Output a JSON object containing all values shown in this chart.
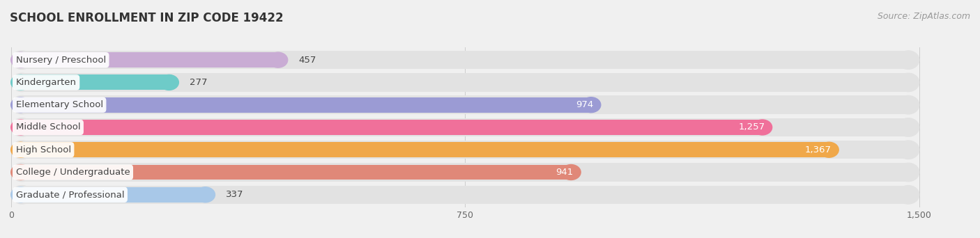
{
  "title": "SCHOOL ENROLLMENT IN ZIP CODE 19422",
  "source": "Source: ZipAtlas.com",
  "categories": [
    "Nursery / Preschool",
    "Kindergarten",
    "Elementary School",
    "Middle School",
    "High School",
    "College / Undergraduate",
    "Graduate / Professional"
  ],
  "values": [
    457,
    277,
    974,
    1257,
    1367,
    941,
    337
  ],
  "bar_colors": [
    "#c9acd4",
    "#6ecbc8",
    "#9b9bd4",
    "#f0709a",
    "#f0a84a",
    "#e08878",
    "#a8c8e8"
  ],
  "xlim": [
    0,
    1500
  ],
  "xticks": [
    0,
    750,
    1500
  ],
  "title_fontsize": 12,
  "source_fontsize": 9,
  "label_fontsize": 9.5,
  "value_fontsize": 9.5,
  "background_color": "#f0f0f0",
  "figsize": [
    14.06,
    3.42
  ]
}
